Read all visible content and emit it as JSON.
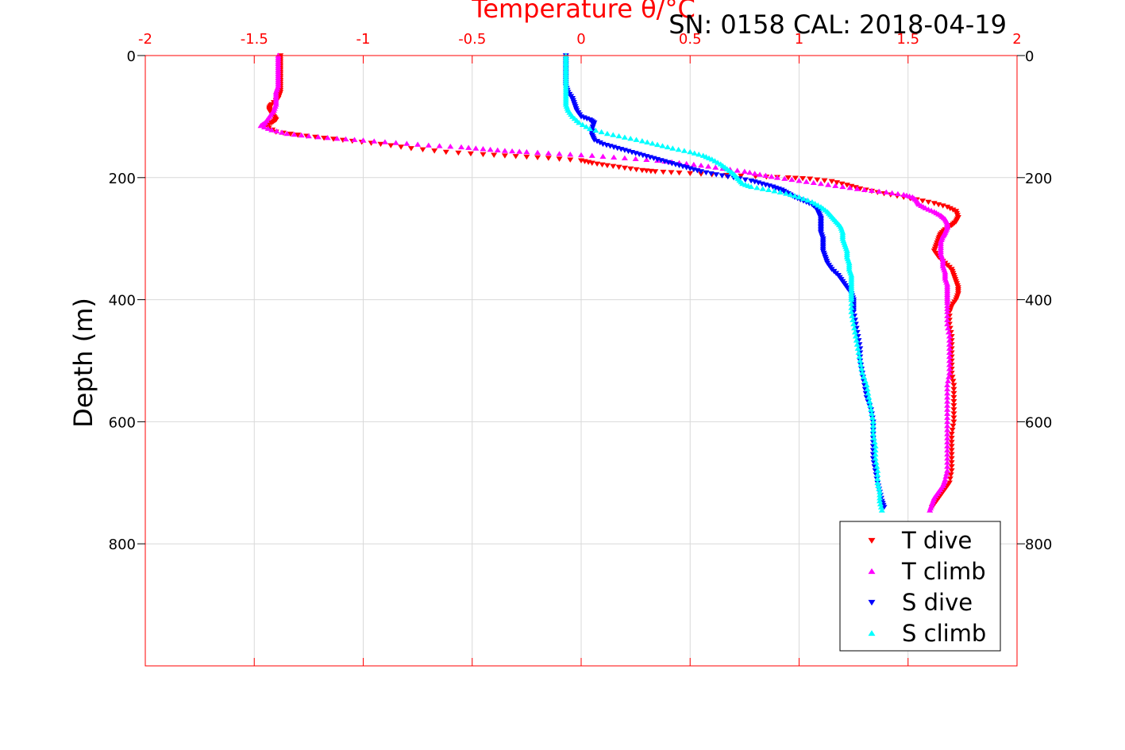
{
  "chart_data": {
    "type": "scatter",
    "title": "Temperature θ/°C",
    "annotation": "SN: 0158  CAL: 2018-04-19",
    "xlabel": "Temperature θ/°C",
    "ylabel": "Depth (m)",
    "xlim": [
      -2,
      2
    ],
    "ylim": [
      0,
      1000
    ],
    "y_reversed": true,
    "x_ticks": [
      "-2",
      "-1.5",
      "-1",
      "-0.5",
      "0",
      "0.5",
      "1",
      "1.5",
      "2"
    ],
    "y_ticks": [
      "0",
      "200",
      "400",
      "600",
      "800"
    ],
    "grid": true,
    "legend_position": "bottom-right",
    "colors": {
      "axis_top": "#ff0000",
      "axis": "#000000",
      "grid": "#d9d9d9",
      "t_dive": "#ff0000",
      "t_climb": "#ff00ff",
      "s_dive": "#0000ff",
      "s_climb": "#00ffff"
    },
    "series": [
      {
        "name": "T dive",
        "marker": "triangle-down",
        "color": "#ff0000",
        "points": [
          [
            -1.38,
            0
          ],
          [
            -1.38,
            10
          ],
          [
            -1.38,
            20
          ],
          [
            -1.38,
            30
          ],
          [
            -1.38,
            40
          ],
          [
            -1.38,
            50
          ],
          [
            -1.38,
            60
          ],
          [
            -1.39,
            70
          ],
          [
            -1.42,
            80
          ],
          [
            -1.43,
            85
          ],
          [
            -1.43,
            90
          ],
          [
            -1.42,
            95
          ],
          [
            -1.41,
            100
          ],
          [
            -1.4,
            105
          ],
          [
            -1.42,
            110
          ],
          [
            -1.45,
            115
          ],
          [
            -1.4,
            125
          ],
          [
            -1.3,
            130
          ],
          [
            -1.18,
            135
          ],
          [
            -1.05,
            140
          ],
          [
            -0.92,
            145
          ],
          [
            -0.78,
            152
          ],
          [
            -0.62,
            158
          ],
          [
            -0.45,
            162
          ],
          [
            -0.3,
            165
          ],
          [
            -0.15,
            168
          ],
          [
            0.0,
            172
          ],
          [
            0.05,
            176
          ],
          [
            0.12,
            180
          ],
          [
            0.2,
            184
          ],
          [
            0.28,
            188
          ],
          [
            0.34,
            190
          ],
          [
            0.45,
            192
          ],
          [
            0.6,
            195
          ],
          [
            0.8,
            198
          ],
          [
            0.95,
            200
          ],
          [
            1.05,
            202
          ],
          [
            1.15,
            206
          ],
          [
            1.22,
            212
          ],
          [
            1.28,
            218
          ],
          [
            1.36,
            224
          ],
          [
            1.45,
            230
          ],
          [
            1.54,
            236
          ],
          [
            1.62,
            242
          ],
          [
            1.68,
            248
          ],
          [
            1.72,
            255
          ],
          [
            1.73,
            265
          ],
          [
            1.72,
            272
          ],
          [
            1.7,
            278
          ],
          [
            1.67,
            285
          ],
          [
            1.65,
            292
          ],
          [
            1.64,
            300
          ],
          [
            1.63,
            310
          ],
          [
            1.62,
            320
          ],
          [
            1.64,
            330
          ],
          [
            1.67,
            340
          ],
          [
            1.7,
            350
          ],
          [
            1.71,
            360
          ],
          [
            1.72,
            370
          ],
          [
            1.73,
            380
          ],
          [
            1.73,
            390
          ],
          [
            1.72,
            400
          ],
          [
            1.7,
            410
          ],
          [
            1.69,
            420
          ],
          [
            1.69,
            440
          ],
          [
            1.7,
            460
          ],
          [
            1.7,
            480
          ],
          [
            1.7,
            500
          ],
          [
            1.7,
            520
          ],
          [
            1.71,
            540
          ],
          [
            1.71,
            560
          ],
          [
            1.71,
            580
          ],
          [
            1.71,
            600
          ],
          [
            1.7,
            620
          ],
          [
            1.7,
            640
          ],
          [
            1.7,
            660
          ],
          [
            1.7,
            680
          ],
          [
            1.69,
            700
          ],
          [
            1.67,
            710
          ],
          [
            1.65,
            720
          ],
          [
            1.63,
            730
          ],
          [
            1.61,
            740
          ]
        ]
      },
      {
        "name": "T climb",
        "marker": "triangle-up",
        "color": "#ff00ff",
        "points": [
          [
            -1.39,
            0
          ],
          [
            -1.39,
            10
          ],
          [
            -1.39,
            20
          ],
          [
            -1.39,
            30
          ],
          [
            -1.39,
            40
          ],
          [
            -1.39,
            50
          ],
          [
            -1.4,
            60
          ],
          [
            -1.4,
            70
          ],
          [
            -1.4,
            80
          ],
          [
            -1.41,
            90
          ],
          [
            -1.43,
            100
          ],
          [
            -1.45,
            110
          ],
          [
            -1.47,
            115
          ],
          [
            -1.42,
            122
          ],
          [
            -1.35,
            128
          ],
          [
            -1.25,
            132
          ],
          [
            -1.12,
            136
          ],
          [
            -1.0,
            139
          ],
          [
            -0.85,
            143
          ],
          [
            -0.7,
            147
          ],
          [
            -0.55,
            150
          ],
          [
            -0.45,
            153
          ],
          [
            -0.35,
            156
          ],
          [
            -0.25,
            158
          ],
          [
            -0.1,
            161
          ],
          [
            0.05,
            164
          ],
          [
            0.2,
            168
          ],
          [
            0.35,
            172
          ],
          [
            0.45,
            176
          ],
          [
            0.55,
            180
          ],
          [
            0.65,
            185
          ],
          [
            0.75,
            190
          ],
          [
            0.82,
            195
          ],
          [
            0.9,
            200
          ],
          [
            1.0,
            205
          ],
          [
            1.1,
            210
          ],
          [
            1.2,
            215
          ],
          [
            1.3,
            220
          ],
          [
            1.4,
            224
          ],
          [
            1.48,
            228
          ],
          [
            1.52,
            232
          ],
          [
            1.54,
            238
          ],
          [
            1.55,
            244
          ],
          [
            1.58,
            250
          ],
          [
            1.62,
            256
          ],
          [
            1.65,
            262
          ],
          [
            1.67,
            268
          ],
          [
            1.68,
            275
          ],
          [
            1.68,
            282
          ],
          [
            1.67,
            290
          ],
          [
            1.66,
            296
          ],
          [
            1.65,
            305
          ],
          [
            1.65,
            315
          ],
          [
            1.65,
            325
          ],
          [
            1.66,
            335
          ],
          [
            1.66,
            345
          ],
          [
            1.67,
            355
          ],
          [
            1.67,
            365
          ],
          [
            1.68,
            375
          ],
          [
            1.68,
            385
          ],
          [
            1.68,
            395
          ],
          [
            1.68,
            405
          ],
          [
            1.68,
            420
          ],
          [
            1.68,
            440
          ],
          [
            1.69,
            460
          ],
          [
            1.69,
            480
          ],
          [
            1.69,
            500
          ],
          [
            1.69,
            520
          ],
          [
            1.68,
            540
          ],
          [
            1.68,
            560
          ],
          [
            1.68,
            580
          ],
          [
            1.68,
            600
          ],
          [
            1.68,
            620
          ],
          [
            1.68,
            640
          ],
          [
            1.68,
            660
          ],
          [
            1.68,
            680
          ],
          [
            1.67,
            695
          ],
          [
            1.66,
            705
          ],
          [
            1.64,
            715
          ],
          [
            1.62,
            725
          ],
          [
            1.61,
            735
          ],
          [
            1.6,
            745
          ]
        ]
      },
      {
        "name": "S dive",
        "marker": "triangle-down",
        "color": "#0000ff",
        "points": [
          [
            -0.07,
            0
          ],
          [
            -0.07,
            10
          ],
          [
            -0.07,
            20
          ],
          [
            -0.07,
            30
          ],
          [
            -0.07,
            40
          ],
          [
            -0.07,
            50
          ],
          [
            -0.06,
            60
          ],
          [
            -0.04,
            70
          ],
          [
            -0.03,
            80
          ],
          [
            -0.02,
            90
          ],
          [
            0.0,
            100
          ],
          [
            0.04,
            105
          ],
          [
            0.06,
            110
          ],
          [
            0.05,
            120
          ],
          [
            0.05,
            130
          ],
          [
            0.06,
            138
          ],
          [
            0.1,
            145
          ],
          [
            0.15,
            150
          ],
          [
            0.2,
            155
          ],
          [
            0.25,
            160
          ],
          [
            0.3,
            165
          ],
          [
            0.35,
            170
          ],
          [
            0.4,
            175
          ],
          [
            0.45,
            180
          ],
          [
            0.5,
            185
          ],
          [
            0.55,
            190
          ],
          [
            0.62,
            195
          ],
          [
            0.7,
            200
          ],
          [
            0.78,
            205
          ],
          [
            0.83,
            210
          ],
          [
            0.88,
            215
          ],
          [
            0.92,
            220
          ],
          [
            0.95,
            226
          ],
          [
            0.98,
            232
          ],
          [
            1.02,
            238
          ],
          [
            1.06,
            244
          ],
          [
            1.08,
            250
          ],
          [
            1.09,
            258
          ],
          [
            1.1,
            266
          ],
          [
            1.1,
            274
          ],
          [
            1.1,
            282
          ],
          [
            1.1,
            290
          ],
          [
            1.11,
            300
          ],
          [
            1.11,
            310
          ],
          [
            1.11,
            320
          ],
          [
            1.12,
            330
          ],
          [
            1.13,
            340
          ],
          [
            1.15,
            350
          ],
          [
            1.18,
            360
          ],
          [
            1.2,
            370
          ],
          [
            1.22,
            380
          ],
          [
            1.24,
            390
          ],
          [
            1.25,
            400
          ],
          [
            1.25,
            410
          ],
          [
            1.25,
            420
          ],
          [
            1.26,
            440
          ],
          [
            1.27,
            460
          ],
          [
            1.28,
            480
          ],
          [
            1.28,
            500
          ],
          [
            1.29,
            520
          ],
          [
            1.3,
            540
          ],
          [
            1.31,
            560
          ],
          [
            1.33,
            580
          ],
          [
            1.34,
            600
          ],
          [
            1.34,
            620
          ],
          [
            1.34,
            640
          ],
          [
            1.34,
            660
          ],
          [
            1.35,
            680
          ],
          [
            1.36,
            700
          ],
          [
            1.37,
            715
          ],
          [
            1.38,
            730
          ],
          [
            1.39,
            740
          ]
        ]
      },
      {
        "name": "S climb",
        "marker": "triangle-up",
        "color": "#00ffff",
        "points": [
          [
            -0.07,
            0
          ],
          [
            -0.07,
            10
          ],
          [
            -0.07,
            20
          ],
          [
            -0.07,
            30
          ],
          [
            -0.07,
            40
          ],
          [
            -0.07,
            50
          ],
          [
            -0.07,
            60
          ],
          [
            -0.07,
            70
          ],
          [
            -0.07,
            80
          ],
          [
            -0.06,
            90
          ],
          [
            -0.04,
            100
          ],
          [
            -0.01,
            110
          ],
          [
            0.04,
            120
          ],
          [
            0.12,
            128
          ],
          [
            0.2,
            134
          ],
          [
            0.28,
            140
          ],
          [
            0.35,
            146
          ],
          [
            0.42,
            152
          ],
          [
            0.5,
            158
          ],
          [
            0.56,
            164
          ],
          [
            0.6,
            170
          ],
          [
            0.64,
            178
          ],
          [
            0.67,
            186
          ],
          [
            0.7,
            194
          ],
          [
            0.72,
            202
          ],
          [
            0.74,
            210
          ],
          [
            0.78,
            215
          ],
          [
            0.86,
            220
          ],
          [
            0.94,
            226
          ],
          [
            1.0,
            232
          ],
          [
            1.06,
            240
          ],
          [
            1.1,
            248
          ],
          [
            1.13,
            256
          ],
          [
            1.15,
            264
          ],
          [
            1.17,
            272
          ],
          [
            1.19,
            280
          ],
          [
            1.2,
            290
          ],
          [
            1.2,
            300
          ],
          [
            1.21,
            310
          ],
          [
            1.22,
            320
          ],
          [
            1.22,
            330
          ],
          [
            1.23,
            340
          ],
          [
            1.23,
            350
          ],
          [
            1.24,
            360
          ],
          [
            1.24,
            370
          ],
          [
            1.24,
            380
          ],
          [
            1.24,
            390
          ],
          [
            1.24,
            400
          ],
          [
            1.24,
            420
          ],
          [
            1.25,
            440
          ],
          [
            1.26,
            460
          ],
          [
            1.27,
            480
          ],
          [
            1.28,
            500
          ],
          [
            1.29,
            520
          ],
          [
            1.31,
            540
          ],
          [
            1.32,
            560
          ],
          [
            1.33,
            580
          ],
          [
            1.34,
            600
          ],
          [
            1.34,
            620
          ],
          [
            1.35,
            640
          ],
          [
            1.35,
            660
          ],
          [
            1.36,
            680
          ],
          [
            1.36,
            700
          ],
          [
            1.37,
            715
          ],
          [
            1.37,
            730
          ],
          [
            1.38,
            745
          ]
        ]
      }
    ]
  }
}
